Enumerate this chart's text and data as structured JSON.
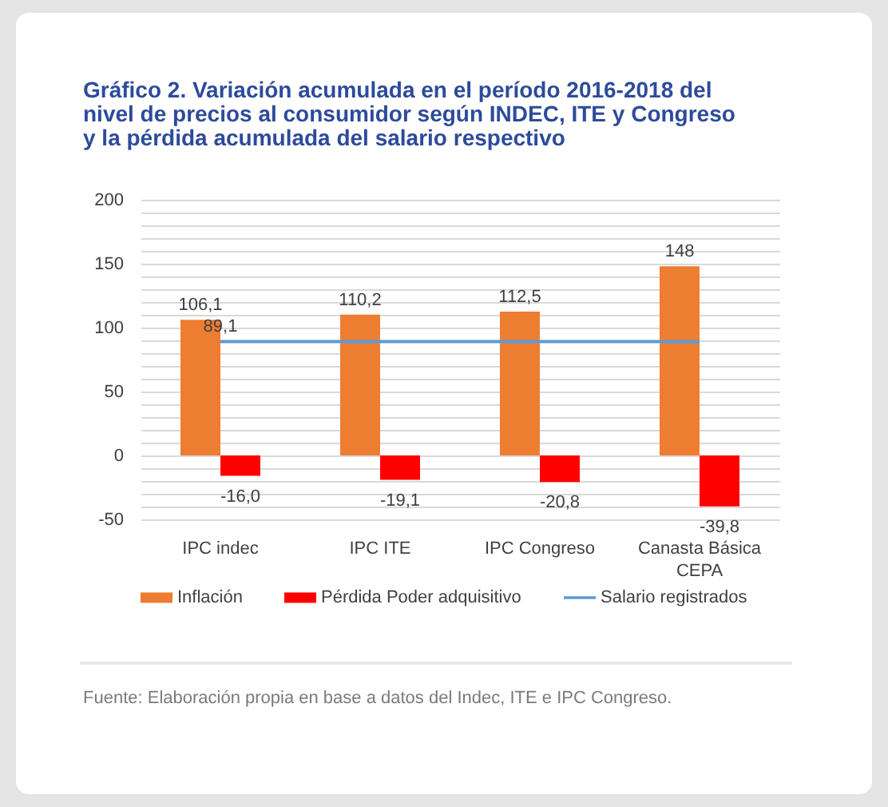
{
  "chart_data": {
    "type": "bar",
    "title": "Gráfico 2. Variación acumulada en el período 2016-2018 del nivel de precios al consumidor según INDEC, ITE y Congreso y la pérdida acumulada del salario respectivo",
    "categories": [
      "IPC indec",
      "IPC ITE",
      "IPC Congreso",
      "Canasta Básica CEPA"
    ],
    "series": [
      {
        "name": "Inflación",
        "color": "#ed7d31",
        "values": [
          106.1,
          110.2,
          112.5,
          148
        ],
        "value_labels": [
          "106,1",
          "110,2",
          "112,5",
          "148"
        ]
      },
      {
        "name": "Pérdida Poder adquisitivo",
        "color": "#ff0000",
        "values": [
          -16.0,
          -19.1,
          -20.8,
          -39.8
        ],
        "value_labels": [
          "-16,0",
          "-19,1",
          "-20,8",
          "-39,8"
        ]
      },
      {
        "name": "Salario registrados",
        "type": "line",
        "color": "#5b9bd5",
        "values": [
          89.1,
          89.1,
          89.1,
          89.1
        ],
        "value_labels": [
          "89,1",
          null,
          null,
          null
        ]
      }
    ],
    "ylim": [
      -50,
      200
    ],
    "yticks": [
      -50,
      {
        "value": -40,
        "label": null
      },
      {
        "value": -30,
        "label": null
      },
      {
        "value": -20,
        "label": null
      },
      {
        "value": -10,
        "label": null
      },
      0,
      {
        "value": 10,
        "label": null
      },
      {
        "value": 20,
        "label": null
      },
      {
        "value": 30,
        "label": null
      },
      {
        "value": 40,
        "label": null
      },
      50,
      {
        "value": 60,
        "label": null
      },
      {
        "value": 70,
        "label": null
      },
      {
        "value": 80,
        "label": null
      },
      {
        "value": 90,
        "label": null
      },
      100,
      {
        "value": 110,
        "label": null
      },
      {
        "value": 120,
        "label": null
      },
      {
        "value": 130,
        "label": null
      },
      {
        "value": 140,
        "label": null
      },
      150,
      {
        "value": 160,
        "label": null
      },
      {
        "value": 170,
        "label": null
      },
      {
        "value": 180,
        "label": null
      },
      {
        "value": 190,
        "label": null
      },
      200
    ],
    "grid": "y",
    "legend": "bottom",
    "annotations": [
      "Fuente: Elaboración propia en base a datos del Indec, ITE e IPC Congreso."
    ]
  }
}
